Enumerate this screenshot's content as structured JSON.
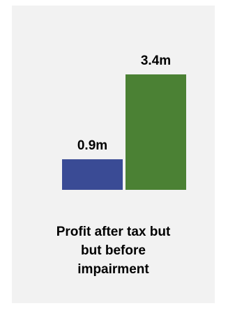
{
  "chart_data": {
    "type": "bar",
    "categories": [
      "",
      ""
    ],
    "values": [
      0.9,
      3.4
    ],
    "data_labels": [
      "0.9m",
      "3.4m"
    ],
    "colors": [
      "#3a4b95",
      "#4b8134"
    ],
    "caption_lines": [
      "Profit after tax but",
      "but before",
      "impairment"
    ],
    "legend": "none",
    "grid": false
  }
}
